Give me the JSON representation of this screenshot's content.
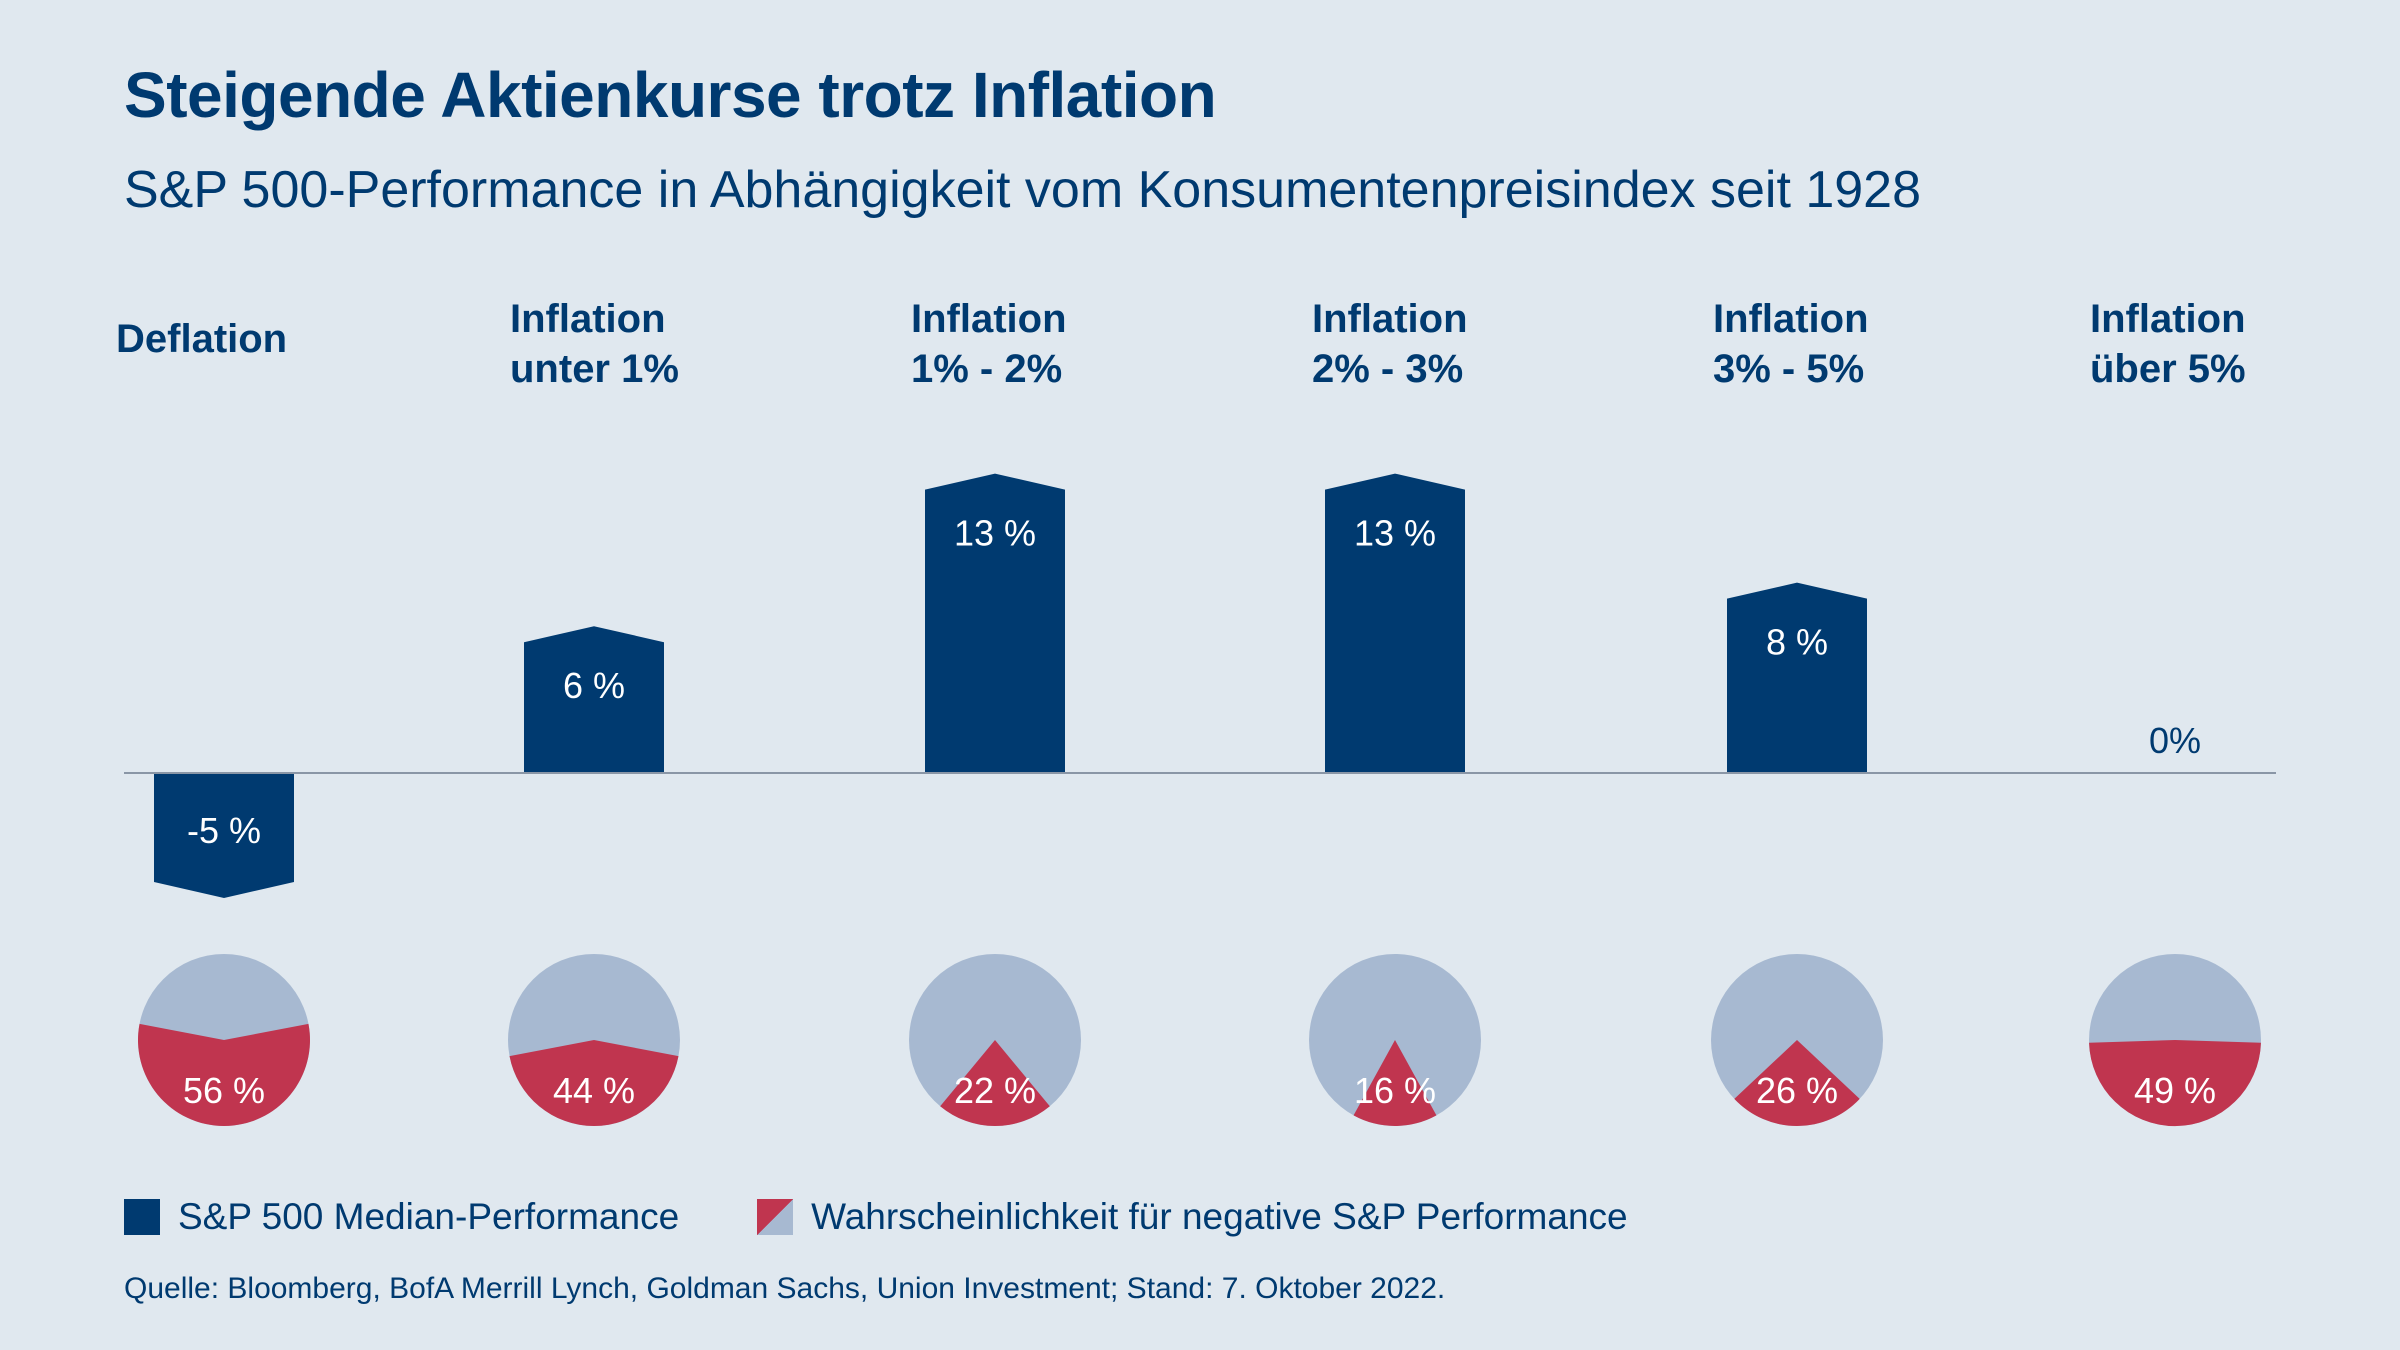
{
  "title": "Steigende Aktienkurse trotz Inflation",
  "subtitle": "S&P 500-Performance in Abhängigkeit vom Konsumentenpreisindex seit 1928",
  "legend": {
    "bar_label": "S&P 500 Median-Performance",
    "pie_label": "Wahrscheinlichkeit für negative S&P Performance"
  },
  "source": "Quelle: Bloomberg, BofA Merrill Lynch, Goldman Sachs, Union Investment; Stand: 7. Oktober 2022.",
  "colors": {
    "background": "#e0e8ef",
    "bar": "#003a70",
    "pie_negative": "#c0354f",
    "pie_rest": "#a7b9d1",
    "axis": "#8a96a6"
  },
  "chart_data": {
    "type": "bar",
    "categories": [
      [
        "Deflation"
      ],
      [
        "Inflation",
        "unter 1%"
      ],
      [
        "Inflation",
        "1% - 2%"
      ],
      [
        "Inflation",
        "2% - 3%"
      ],
      [
        "Inflation",
        "3% - 5%"
      ],
      [
        "Inflation",
        "über 5%"
      ]
    ],
    "series": [
      {
        "name": "S&P 500 Median-Performance",
        "values": [
          -5,
          6,
          13,
          13,
          8,
          0
        ],
        "labels": [
          "-5 %",
          "6 %",
          "13 %",
          "13 %",
          "8 %",
          "0%"
        ]
      },
      {
        "name": "Wahrscheinlichkeit für negative S&P Performance",
        "type": "pie",
        "values": [
          56,
          44,
          22,
          16,
          26,
          49
        ],
        "labels": [
          "56 %",
          "44 %",
          "22 %",
          "16 %",
          "26 %",
          "49 %"
        ]
      }
    ],
    "ylim": [
      -5,
      13
    ]
  }
}
